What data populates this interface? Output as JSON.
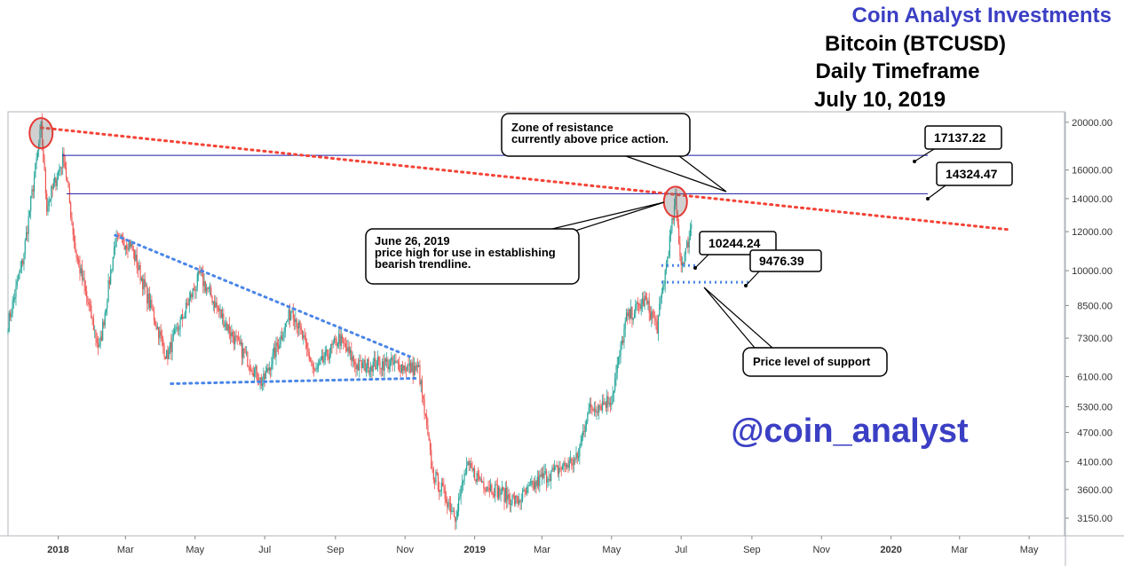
{
  "header": {
    "brand": "Coin Analyst Investments",
    "symbol": "Bitcoin (BTCUSD)",
    "timeframe": "Daily Timeframe",
    "date": "July 10, 2019"
  },
  "watermark": "@coin_analyst",
  "colors": {
    "up": "#26a69a",
    "down": "#ef5350",
    "resistance_line": "#1a1aa6",
    "trendline_bearish": "#f44336",
    "trendline_support": "#4a86e8",
    "brand": "#3b3fc4",
    "watermark": "#3b3fc4"
  },
  "chart_data": {
    "type": "candlestick",
    "title": "Bitcoin (BTCUSD)",
    "y_scale": "log",
    "ylim": [
      2900,
      21000
    ],
    "y_ticks": [
      "20000.00",
      "16000.00",
      "14000.00",
      "12000.00",
      "10000.00",
      "8500.00",
      "7300.00",
      "6100.00",
      "5300.00",
      "4700.00",
      "4100.00",
      "3600.00",
      "3150.00"
    ],
    "x_ticks": [
      "2018",
      "Mar",
      "May",
      "Jul",
      "Sep",
      "Nov",
      "2019",
      "Mar",
      "May",
      "Jul",
      "Sep",
      "Nov",
      "2020",
      "Mar",
      "May"
    ],
    "x_range": [
      "2017-11-18",
      "2020-06-01"
    ],
    "price_path": [
      [
        "2017-11-18",
        7800
      ],
      [
        "2017-12-01",
        10500
      ],
      [
        "2017-12-17",
        19500
      ],
      [
        "2017-12-22",
        13500
      ],
      [
        "2018-01-06",
        17100
      ],
      [
        "2018-01-16",
        11000
      ],
      [
        "2018-02-06",
        6900
      ],
      [
        "2018-02-20",
        11500
      ],
      [
        "2018-03-05",
        11400
      ],
      [
        "2018-04-06",
        6700
      ],
      [
        "2018-05-05",
        9800
      ],
      [
        "2018-06-01",
        7500
      ],
      [
        "2018-06-29",
        5900
      ],
      [
        "2018-07-25",
        8400
      ],
      [
        "2018-08-14",
        6200
      ],
      [
        "2018-09-04",
        7300
      ],
      [
        "2018-09-20",
        6400
      ],
      [
        "2018-10-15",
        6500
      ],
      [
        "2018-11-13",
        6300
      ],
      [
        "2018-11-25",
        3900
      ],
      [
        "2018-12-15",
        3200
      ],
      [
        "2018-12-25",
        4000
      ],
      [
        "2019-01-10",
        3700
      ],
      [
        "2019-02-07",
        3400
      ],
      [
        "2019-03-01",
        3800
      ],
      [
        "2019-04-01",
        4150
      ],
      [
        "2019-04-10",
        5200
      ],
      [
        "2019-05-01",
        5500
      ],
      [
        "2019-05-14",
        8000
      ],
      [
        "2019-05-30",
        8700
      ],
      [
        "2019-06-10",
        7700
      ],
      [
        "2019-06-26",
        13800
      ],
      [
        "2019-07-01",
        10300
      ],
      [
        "2019-07-05",
        10900
      ],
      [
        "2019-07-10",
        12400
      ]
    ],
    "annotations": [
      {
        "text": "Zone of resistance\ncurrently above price action."
      },
      {
        "text": "June 26, 2019\nprice high for use in establishing\nbearish trendline."
      },
      {
        "text": "Price level of support"
      }
    ],
    "levels": [
      {
        "label": "17137.22",
        "value": 17137.22,
        "style": "solid"
      },
      {
        "label": "14324.47",
        "value": 14324.47,
        "style": "solid"
      },
      {
        "label": "10244.24",
        "value": 10244.24,
        "style": "dotted"
      },
      {
        "label": "9476.39",
        "value": 9476.39,
        "style": "dotted"
      }
    ],
    "trendlines": [
      {
        "name": "bearish trendline",
        "points": [
          [
            "2017-12-17",
            19500
          ],
          [
            "2020-04-15",
            12100
          ]
        ]
      },
      {
        "name": "upper triangle",
        "points": [
          [
            "2018-02-20",
            11800
          ],
          [
            "2018-11-05",
            6700
          ]
        ]
      },
      {
        "name": "lower triangle",
        "points": [
          [
            "2018-04-10",
            5900
          ],
          [
            "2018-11-10",
            6050
          ]
        ]
      }
    ],
    "highlights": [
      {
        "date": "2017-12-17",
        "value": 19000
      },
      {
        "date": "2019-06-26",
        "value": 13800
      }
    ]
  }
}
